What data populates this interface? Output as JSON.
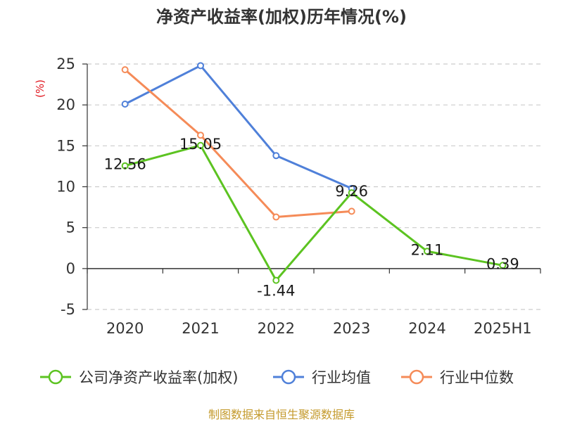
{
  "chart_data": {
    "type": "line",
    "title": "净资产收益率(加权)历年情况(%)",
    "ylabel": "(%)",
    "categories": [
      "2020",
      "2021",
      "2022",
      "2023",
      "2024",
      "2025H1"
    ],
    "ylim": [
      -5,
      25
    ],
    "yticks": [
      -5,
      0,
      5,
      10,
      15,
      20,
      25
    ],
    "grid": true,
    "legend_position": "bottom",
    "series": [
      {
        "name": "公司净资产收益率(加权)",
        "color": "#5cc321",
        "values": [
          12.56,
          15.05,
          -1.44,
          9.26,
          2.11,
          0.39
        ],
        "labels": [
          "12.56",
          "15.05",
          "-1.44",
          "9.26",
          "2.11",
          "0.39"
        ]
      },
      {
        "name": "行业均值",
        "color": "#4f80d9",
        "values": [
          20.1,
          24.8,
          13.8,
          9.8,
          null,
          null
        ]
      },
      {
        "name": "行业中位数",
        "color": "#f58b58",
        "values": [
          24.3,
          16.3,
          6.3,
          7.0,
          null,
          null
        ]
      }
    ]
  },
  "source": "制图数据来自恒生聚源数据库"
}
